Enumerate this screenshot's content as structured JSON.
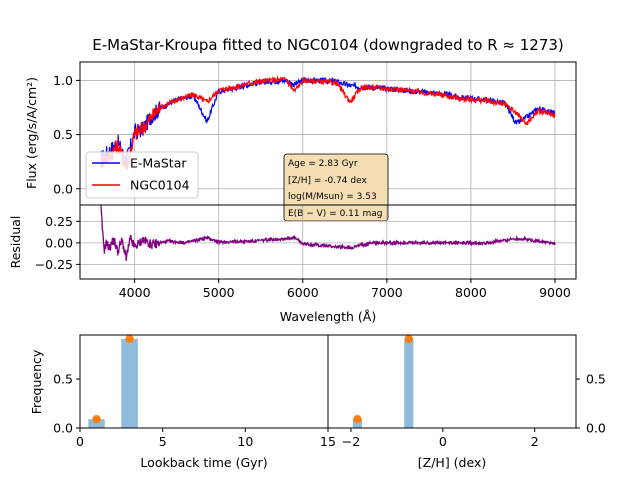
{
  "figure": {
    "title": "E-MaStar-Kroupa fitted to NGC0104 (downgraded to R ≈ 1273)"
  },
  "chart_data": [
    {
      "type": "line",
      "panel": "spectrum",
      "ylabel": "Flux (erg/s/A/cm²)",
      "xlim": [
        3350,
        9250
      ],
      "ylim": [
        -0.15,
        1.17
      ],
      "yticks": [
        "0.0",
        "0.5",
        "1.0"
      ],
      "grid": true,
      "legend": {
        "position": "lower-left",
        "entries": [
          "E-MaStar",
          "NGC0104"
        ]
      },
      "colors": {
        "model": "#0000ff",
        "data": "#ff0000"
      },
      "x_anchor": [
        3600,
        3700,
        3800,
        3900,
        4000,
        4100,
        4200,
        4300,
        4500,
        4700,
        4861,
        5000,
        5200,
        5400,
        5600,
        5800,
        5900,
        6000,
        6200,
        6400,
        6563,
        6700,
        6900,
        7100,
        7300,
        7500,
        7700,
        7900,
        8200,
        8400,
        8542,
        8662,
        8800,
        9000
      ],
      "series": [
        {
          "name": "E-MaStar",
          "values": [
            0.28,
            0.35,
            0.43,
            0.25,
            0.52,
            0.55,
            0.67,
            0.74,
            0.82,
            0.86,
            0.62,
            0.9,
            0.93,
            0.97,
            0.99,
            1.0,
            0.96,
            1.0,
            1.0,
            0.99,
            0.95,
            0.94,
            0.93,
            0.92,
            0.9,
            0.89,
            0.87,
            0.84,
            0.82,
            0.79,
            0.6,
            0.66,
            0.74,
            0.7
          ]
        },
        {
          "name": "NGC0104",
          "values": [
            0.25,
            0.3,
            0.4,
            0.2,
            0.5,
            0.56,
            0.66,
            0.75,
            0.82,
            0.87,
            0.8,
            0.91,
            0.94,
            0.98,
            1.0,
            1.01,
            0.9,
            1.0,
            0.99,
            0.98,
            0.8,
            0.94,
            0.93,
            0.92,
            0.9,
            0.88,
            0.86,
            0.83,
            0.81,
            0.78,
            0.7,
            0.6,
            0.72,
            0.68
          ]
        }
      ],
      "annotation": {
        "lines": [
          "Age = 2.83 Gyr",
          "[Z/H] = -0.74 dex",
          "log(M/Msun) = 3.53",
          "E(B − V) = 0.11 mag"
        ]
      }
    },
    {
      "type": "line",
      "panel": "residual",
      "xlabel": "Wavelength (Å)",
      "ylabel": "Residual",
      "xlim": [
        3350,
        9250
      ],
      "ylim": [
        -0.42,
        0.44
      ],
      "xticks": [
        "4000",
        "5000",
        "6000",
        "7000",
        "8000",
        "9000"
      ],
      "yticks": [
        "−0.25",
        "0.00",
        "0.25"
      ],
      "grid": true,
      "color": "#800080",
      "x": [
        3600,
        3620,
        3640,
        3660,
        3700,
        3750,
        3800,
        3850,
        3900,
        3950,
        4000,
        4100,
        4200,
        4400,
        4600,
        4861,
        5000,
        5400,
        5900,
        6000,
        6563,
        6800,
        7200,
        7700,
        8200,
        8542,
        8662,
        9000
      ],
      "values": [
        0.4,
        0.1,
        -0.08,
        0.0,
        -0.06,
        0.04,
        -0.1,
        0.03,
        -0.18,
        0.05,
        -0.05,
        0.04,
        -0.02,
        0.02,
        0.0,
        0.06,
        0.01,
        0.02,
        0.06,
        -0.01,
        -0.06,
        0.0,
        0.0,
        0.0,
        0.0,
        0.05,
        0.04,
        -0.01
      ]
    },
    {
      "type": "bar",
      "panel": "age-histogram",
      "xlabel": "Lookback time (Gyr)",
      "ylabel": "Frequency",
      "xlim": [
        0,
        15
      ],
      "ylim": [
        0,
        0.95
      ],
      "xticks": [
        "0",
        "5",
        "10",
        "15"
      ],
      "yticks": [
        "0.0",
        "0.5"
      ],
      "bars": [
        {
          "x0": 0.5,
          "x1": 1.5,
          "value": 0.09
        },
        {
          "x0": 2.5,
          "x1": 3.5,
          "value": 0.91
        }
      ],
      "points": [
        {
          "x": 1.0,
          "value": 0.09
        },
        {
          "x": 3.0,
          "value": 0.91
        }
      ],
      "colors": {
        "bar": "#8fbcdb",
        "point": "#ff7f0e"
      }
    },
    {
      "type": "bar",
      "panel": "metallicity-histogram",
      "xlabel": "[Z/H] (dex)",
      "xlim": [
        -2.5,
        2.9
      ],
      "ylim": [
        0,
        0.95
      ],
      "xticks": [
        "−2",
        "0",
        "2"
      ],
      "yticks": [
        "0.0",
        "0.5"
      ],
      "bars": [
        {
          "x0": -1.96,
          "x1": -1.76,
          "value": 0.09
        },
        {
          "x0": -0.84,
          "x1": -0.64,
          "value": 0.91
        }
      ],
      "points": [
        {
          "x": -1.86,
          "value": 0.09
        },
        {
          "x": -0.74,
          "value": 0.91
        }
      ],
      "colors": {
        "bar": "#8fbcdb",
        "point": "#ff7f0e"
      }
    }
  ]
}
